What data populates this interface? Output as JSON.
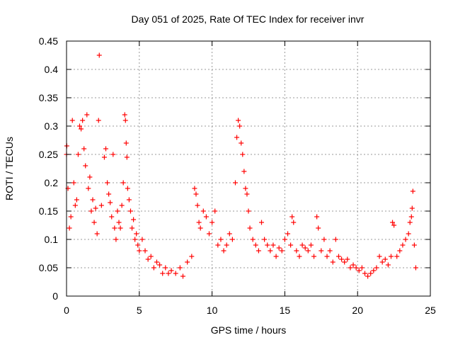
{
  "chart_data": {
    "type": "scatter",
    "title": "Day 051 of 2025, Rate Of TEC Index for receiver invr",
    "xlabel": "GPS time / hours",
    "ylabel": "ROTI / TECUs",
    "xlim": [
      0,
      25
    ],
    "ylim": [
      0,
      0.45
    ],
    "x_ticks": [
      0,
      5,
      10,
      15,
      20,
      25
    ],
    "y_ticks": [
      0,
      0.05,
      0.1,
      0.15,
      0.2,
      0.25,
      0.3,
      0.35,
      0.4,
      0.45
    ],
    "x_tick_labels": [
      "0",
      "5",
      "10",
      "15",
      "20",
      "25"
    ],
    "y_tick_labels": [
      "0",
      "0.05",
      "0.1",
      "0.15",
      "0.2",
      "0.25",
      "0.3",
      "0.35",
      "0.4",
      "0.45"
    ],
    "grid": true,
    "marker": "+",
    "color": "#ff0000",
    "series": [
      {
        "name": "ROTI",
        "points": [
          [
            0.0,
            0.25
          ],
          [
            0.02,
            0.265
          ],
          [
            0.1,
            0.19
          ],
          [
            0.2,
            0.12
          ],
          [
            0.3,
            0.14
          ],
          [
            0.4,
            0.31
          ],
          [
            0.5,
            0.2
          ],
          [
            0.6,
            0.16
          ],
          [
            0.7,
            0.17
          ],
          [
            0.8,
            0.25
          ],
          [
            0.9,
            0.3
          ],
          [
            1.0,
            0.295
          ],
          [
            1.1,
            0.31
          ],
          [
            1.2,
            0.26
          ],
          [
            1.3,
            0.23
          ],
          [
            1.4,
            0.32
          ],
          [
            1.5,
            0.19
          ],
          [
            1.6,
            0.21
          ],
          [
            1.7,
            0.15
          ],
          [
            1.8,
            0.17
          ],
          [
            1.9,
            0.13
          ],
          [
            2.0,
            0.155
          ],
          [
            2.1,
            0.11
          ],
          [
            2.2,
            0.31
          ],
          [
            2.25,
            0.425
          ],
          [
            2.4,
            0.16
          ],
          [
            2.6,
            0.245
          ],
          [
            2.7,
            0.26
          ],
          [
            2.8,
            0.2
          ],
          [
            2.9,
            0.18
          ],
          [
            3.0,
            0.165
          ],
          [
            3.1,
            0.14
          ],
          [
            3.2,
            0.25
          ],
          [
            3.3,
            0.12
          ],
          [
            3.4,
            0.1
          ],
          [
            3.5,
            0.15
          ],
          [
            3.6,
            0.13
          ],
          [
            3.7,
            0.12
          ],
          [
            3.8,
            0.16
          ],
          [
            3.9,
            0.2
          ],
          [
            4.0,
            0.32
          ],
          [
            4.05,
            0.31
          ],
          [
            4.1,
            0.27
          ],
          [
            4.15,
            0.245
          ],
          [
            4.2,
            0.19
          ],
          [
            4.3,
            0.17
          ],
          [
            4.4,
            0.15
          ],
          [
            4.5,
            0.12
          ],
          [
            4.6,
            0.135
          ],
          [
            4.7,
            0.1
          ],
          [
            4.8,
            0.11
          ],
          [
            4.9,
            0.09
          ],
          [
            5.0,
            0.08
          ],
          [
            5.2,
            0.1
          ],
          [
            5.4,
            0.08
          ],
          [
            5.6,
            0.065
          ],
          [
            5.8,
            0.07
          ],
          [
            6.0,
            0.05
          ],
          [
            6.2,
            0.06
          ],
          [
            6.4,
            0.055
          ],
          [
            6.6,
            0.04
          ],
          [
            6.8,
            0.05
          ],
          [
            7.0,
            0.04
          ],
          [
            7.2,
            0.045
          ],
          [
            7.5,
            0.04
          ],
          [
            7.8,
            0.05
          ],
          [
            8.0,
            0.035
          ],
          [
            8.3,
            0.06
          ],
          [
            8.6,
            0.07
          ],
          [
            8.8,
            0.19
          ],
          [
            8.9,
            0.18
          ],
          [
            9.0,
            0.16
          ],
          [
            9.1,
            0.13
          ],
          [
            9.2,
            0.12
          ],
          [
            9.4,
            0.15
          ],
          [
            9.6,
            0.14
          ],
          [
            9.8,
            0.11
          ],
          [
            10.0,
            0.13
          ],
          [
            10.2,
            0.15
          ],
          [
            10.4,
            0.09
          ],
          [
            10.6,
            0.1
          ],
          [
            10.8,
            0.08
          ],
          [
            11.0,
            0.09
          ],
          [
            11.2,
            0.11
          ],
          [
            11.4,
            0.1
          ],
          [
            11.6,
            0.2
          ],
          [
            11.7,
            0.28
          ],
          [
            11.8,
            0.31
          ],
          [
            11.9,
            0.3
          ],
          [
            12.0,
            0.27
          ],
          [
            12.1,
            0.25
          ],
          [
            12.2,
            0.22
          ],
          [
            12.3,
            0.19
          ],
          [
            12.4,
            0.18
          ],
          [
            12.5,
            0.15
          ],
          [
            12.6,
            0.12
          ],
          [
            12.8,
            0.1
          ],
          [
            13.0,
            0.09
          ],
          [
            13.2,
            0.08
          ],
          [
            13.4,
            0.13
          ],
          [
            13.6,
            0.1
          ],
          [
            13.8,
            0.09
          ],
          [
            14.0,
            0.08
          ],
          [
            14.2,
            0.09
          ],
          [
            14.4,
            0.07
          ],
          [
            14.6,
            0.085
          ],
          [
            14.8,
            0.08
          ],
          [
            15.0,
            0.1
          ],
          [
            15.2,
            0.11
          ],
          [
            15.4,
            0.09
          ],
          [
            15.5,
            0.14
          ],
          [
            15.6,
            0.13
          ],
          [
            15.8,
            0.08
          ],
          [
            16.0,
            0.07
          ],
          [
            16.2,
            0.09
          ],
          [
            16.4,
            0.085
          ],
          [
            16.6,
            0.08
          ],
          [
            16.8,
            0.09
          ],
          [
            17.0,
            0.07
          ],
          [
            17.2,
            0.14
          ],
          [
            17.3,
            0.12
          ],
          [
            17.5,
            0.08
          ],
          [
            17.7,
            0.1
          ],
          [
            17.9,
            0.07
          ],
          [
            18.1,
            0.08
          ],
          [
            18.3,
            0.06
          ],
          [
            18.5,
            0.1
          ],
          [
            18.7,
            0.07
          ],
          [
            18.9,
            0.065
          ],
          [
            19.1,
            0.06
          ],
          [
            19.3,
            0.065
          ],
          [
            19.5,
            0.05
          ],
          [
            19.7,
            0.055
          ],
          [
            19.9,
            0.05
          ],
          [
            20.1,
            0.045
          ],
          [
            20.3,
            0.05
          ],
          [
            20.5,
            0.04
          ],
          [
            20.7,
            0.035
          ],
          [
            20.9,
            0.04
          ],
          [
            21.1,
            0.045
          ],
          [
            21.3,
            0.05
          ],
          [
            21.5,
            0.07
          ],
          [
            21.7,
            0.06
          ],
          [
            21.9,
            0.065
          ],
          [
            22.1,
            0.055
          ],
          [
            22.3,
            0.07
          ],
          [
            22.4,
            0.13
          ],
          [
            22.5,
            0.125
          ],
          [
            22.7,
            0.07
          ],
          [
            22.9,
            0.08
          ],
          [
            23.1,
            0.09
          ],
          [
            23.3,
            0.1
          ],
          [
            23.5,
            0.11
          ],
          [
            23.6,
            0.13
          ],
          [
            23.7,
            0.14
          ],
          [
            23.75,
            0.155
          ],
          [
            23.8,
            0.185
          ],
          [
            23.9,
            0.09
          ],
          [
            24.0,
            0.05
          ]
        ]
      }
    ]
  }
}
